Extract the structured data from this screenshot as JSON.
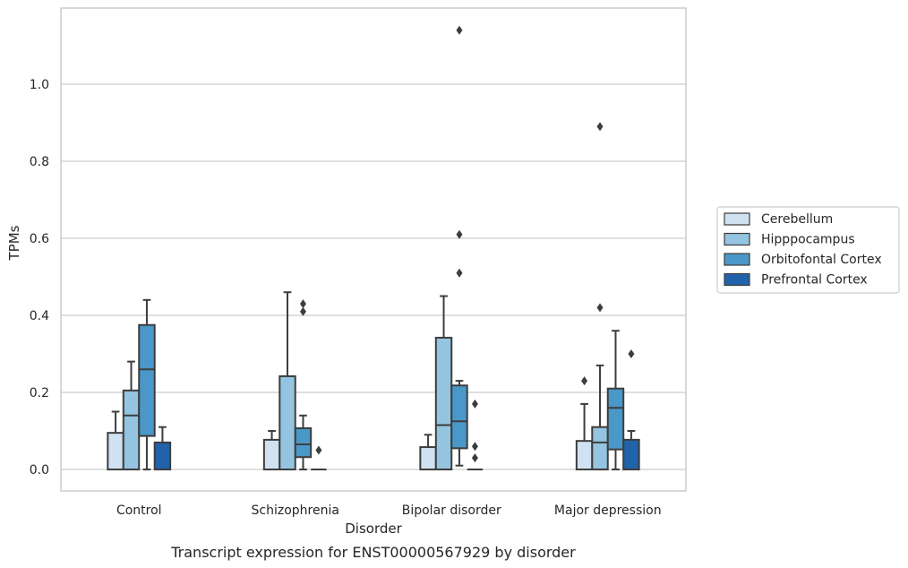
{
  "chart_data": {
    "type": "box",
    "caption": "Transcript expression for ENST00000567929 by disorder",
    "xlabel": "Disorder",
    "ylabel": "TPMs",
    "ylim": [
      -0.055,
      1.2
    ],
    "yticks": [
      0.0,
      0.2,
      0.4,
      0.6,
      0.8,
      1.0
    ],
    "ytick_labels": [
      "0.0",
      "0.2",
      "0.4",
      "0.6",
      "0.8",
      "1.0"
    ],
    "grid": "horizontal",
    "legend_position": "right",
    "categories": [
      "Control",
      "Schizophrenia",
      "Bipolar disorder",
      "Major depression"
    ],
    "series": [
      {
        "name": "Cerebellum",
        "color": "#d0e1f2",
        "boxes": [
          {
            "whislo": 0.0,
            "q1": 0.0,
            "med": 0.0,
            "q3": 0.095,
            "whishi": 0.15,
            "fliers": []
          },
          {
            "whislo": 0.0,
            "q1": 0.0,
            "med": 0.0,
            "q3": 0.077,
            "whishi": 0.1,
            "fliers": []
          },
          {
            "whislo": 0.0,
            "q1": 0.0,
            "med": 0.0,
            "q3": 0.058,
            "whishi": 0.09,
            "fliers": []
          },
          {
            "whislo": 0.0,
            "q1": 0.0,
            "med": 0.0,
            "q3": 0.074,
            "whishi": 0.17,
            "fliers": [
              0.23
            ]
          }
        ]
      },
      {
        "name": "Hipppocampus",
        "color": "#94c4df",
        "boxes": [
          {
            "whislo": 0.0,
            "q1": 0.0,
            "med": 0.14,
            "q3": 0.205,
            "whishi": 0.28,
            "fliers": []
          },
          {
            "whislo": 0.0,
            "q1": 0.0,
            "med": 0.0,
            "q3": 0.242,
            "whishi": 0.46,
            "fliers": []
          },
          {
            "whislo": 0.0,
            "q1": 0.0,
            "med": 0.115,
            "q3": 0.342,
            "whishi": 0.45,
            "fliers": []
          },
          {
            "whislo": 0.0,
            "q1": 0.0,
            "med": 0.07,
            "q3": 0.11,
            "whishi": 0.27,
            "fliers": [
              0.42,
              0.89
            ]
          }
        ]
      },
      {
        "name": "Orbitofontal Cortex",
        "color": "#4a98c9",
        "boxes": [
          {
            "whislo": 0.0,
            "q1": 0.087,
            "med": 0.26,
            "q3": 0.375,
            "whishi": 0.44,
            "fliers": []
          },
          {
            "whislo": 0.0,
            "q1": 0.032,
            "med": 0.065,
            "q3": 0.107,
            "whishi": 0.14,
            "fliers": [
              0.41,
              0.43
            ]
          },
          {
            "whislo": 0.01,
            "q1": 0.055,
            "med": 0.125,
            "q3": 0.218,
            "whishi": 0.23,
            "fliers": [
              0.51,
              0.61,
              1.14
            ]
          },
          {
            "whislo": 0.0,
            "q1": 0.052,
            "med": 0.16,
            "q3": 0.21,
            "whishi": 0.36,
            "fliers": []
          }
        ]
      },
      {
        "name": "Prefrontal Cortex",
        "color": "#2163aa",
        "boxes": [
          {
            "whislo": 0.0,
            "q1": 0.0,
            "med": 0.0,
            "q3": 0.07,
            "whishi": 0.11,
            "fliers": []
          },
          {
            "whislo": 0.0,
            "q1": 0.0,
            "med": 0.0,
            "q3": 0.0,
            "whishi": 0.0,
            "fliers": [
              0.05
            ]
          },
          {
            "whislo": 0.0,
            "q1": 0.0,
            "med": 0.0,
            "q3": 0.0,
            "whishi": 0.0,
            "fliers": [
              0.03,
              0.06,
              0.17
            ]
          },
          {
            "whislo": 0.0,
            "q1": 0.0,
            "med": 0.0,
            "q3": 0.077,
            "whishi": 0.1,
            "fliers": [
              0.3
            ]
          }
        ]
      }
    ]
  }
}
